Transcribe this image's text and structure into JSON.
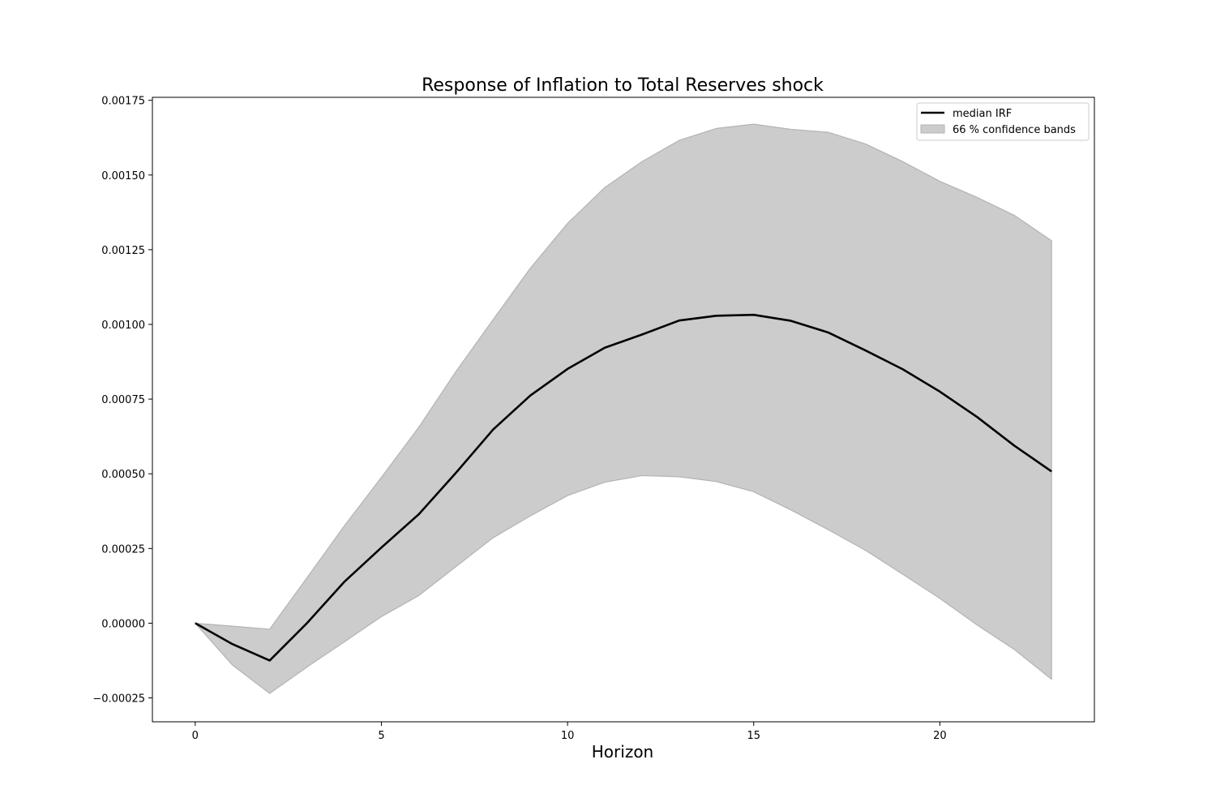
{
  "chart_data": {
    "type": "line",
    "title": "Response of Inflation to Total Reserves shock",
    "xlabel": "Horizon",
    "ylabel": "",
    "xlim": [
      -1.15,
      24.15
    ],
    "ylim": [
      -0.00033,
      0.00176
    ],
    "x_ticks": [
      0,
      5,
      10,
      15,
      20
    ],
    "x_tick_labels": [
      "0",
      "5",
      "10",
      "15",
      "20"
    ],
    "y_ticks": [
      -0.00025,
      0.0,
      0.00025,
      0.0005,
      0.00075,
      0.001,
      0.00125,
      0.0015,
      0.00175
    ],
    "y_tick_labels": [
      "−0.00025",
      "0.00000",
      "0.00025",
      "0.00050",
      "0.00075",
      "0.00100",
      "0.00125",
      "0.00150",
      "0.00175"
    ],
    "grid": false,
    "legend_position": "top-right",
    "x": [
      0,
      1,
      2,
      3,
      4,
      5,
      6,
      7,
      8,
      9,
      10,
      11,
      12,
      13,
      14,
      15,
      16,
      17,
      18,
      19,
      20,
      21,
      22,
      23
    ],
    "series": [
      {
        "name": "median IRF",
        "kind": "line",
        "color": "#000000",
        "values": [
          0.0,
          -7e-05,
          -0.000125,
          0.0,
          0.000138,
          0.000253,
          0.000364,
          0.000503,
          0.000648,
          0.000762,
          0.000851,
          0.000922,
          0.000966,
          0.001013,
          0.001029,
          0.001032,
          0.001012,
          0.000973,
          0.000913,
          0.00085,
          0.000775,
          0.00069,
          0.000594,
          0.000508
        ]
      },
      {
        "name": "66 % confidence bands",
        "kind": "band",
        "color": "#cccccc",
        "edge_color": "#b3b3b3",
        "lower": [
          0.0,
          -0.00014,
          -0.000235,
          -0.000147,
          -6.3e-05,
          2.2e-05,
          9.2e-05,
          0.000189,
          0.000286,
          0.000359,
          0.000427,
          0.000472,
          0.000494,
          0.00049,
          0.000474,
          0.00044,
          0.000379,
          0.000313,
          0.000244,
          0.000164,
          8.3e-05,
          -6e-06,
          -8.8e-05,
          -0.000188
        ],
        "upper": [
          0.0,
          -1e-05,
          -2e-05,
          0.000152,
          0.000325,
          0.000488,
          0.000655,
          0.000842,
          0.001016,
          0.001188,
          0.001338,
          0.001458,
          0.001545,
          0.001616,
          0.001656,
          0.00167,
          0.001653,
          0.001643,
          0.001604,
          0.001545,
          0.001479,
          0.001425,
          0.001365,
          0.00128
        ]
      }
    ]
  }
}
